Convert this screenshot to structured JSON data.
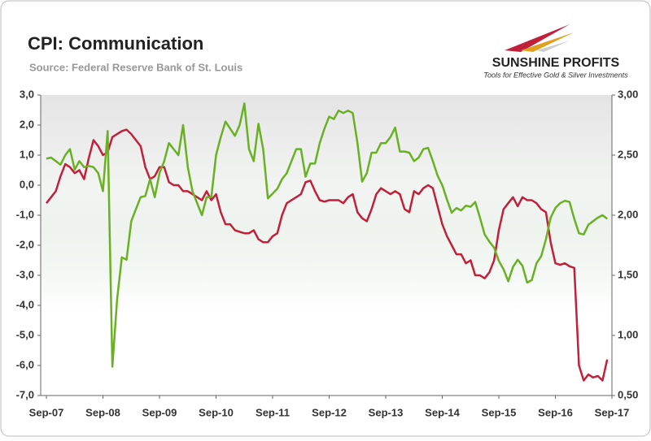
{
  "chart_data": {
    "type": "line",
    "title": "CPI: Communication",
    "subtitle": "Source: Federal Reserve Bank of St. Louis",
    "annotations": [
      "SUNSHINE PROFITS",
      "Tools for Effective Gold & Silver Investments"
    ],
    "categories": [
      "Sep-07",
      null,
      null,
      null,
      null,
      null,
      null,
      null,
      null,
      null,
      null,
      null,
      "Sep-08",
      null,
      null,
      null,
      null,
      null,
      null,
      null,
      null,
      null,
      null,
      null,
      "Sep-09",
      null,
      null,
      null,
      null,
      null,
      null,
      null,
      null,
      null,
      null,
      null,
      "Sep-10",
      null,
      null,
      null,
      null,
      null,
      null,
      null,
      null,
      null,
      null,
      null,
      "Sep-11",
      null,
      null,
      null,
      null,
      null,
      null,
      null,
      null,
      null,
      null,
      null,
      "Sep-12",
      null,
      null,
      null,
      null,
      null,
      null,
      null,
      null,
      null,
      null,
      null,
      "Sep-13",
      null,
      null,
      null,
      null,
      null,
      null,
      null,
      null,
      null,
      null,
      null,
      "Sep-14",
      null,
      null,
      null,
      null,
      null,
      null,
      null,
      null,
      null,
      null,
      null,
      "Sep-15",
      null,
      null,
      null,
      null,
      null,
      null,
      null,
      null,
      null,
      null,
      null,
      "Sep-16",
      null,
      null,
      null,
      null,
      null,
      null,
      null,
      null,
      null,
      null,
      null,
      "Sep-17"
    ],
    "series": [
      {
        "color": "#c0203a",
        "values": [
          -0.6,
          -0.4,
          -0.2,
          0.3,
          0.7,
          0.6,
          0.4,
          0.5,
          0.2,
          0.9,
          1.5,
          1.3,
          1.0,
          1.1,
          1.6,
          1.7,
          1.8,
          1.85,
          1.7,
          1.5,
          1.3,
          0.6,
          0.2,
          0.3,
          0.6,
          0.6,
          0.1,
          0.0,
          0.0,
          -0.2,
          -0.2,
          -0.3,
          -0.4,
          -0.5,
          -0.2,
          -0.5,
          -0.3,
          -0.9,
          -1.3,
          -1.3,
          -1.5,
          -1.55,
          -1.6,
          -1.6,
          -1.5,
          -1.8,
          -1.9,
          -1.9,
          -1.7,
          -1.6,
          -1.0,
          -0.6,
          -0.5,
          -0.4,
          -0.3,
          0.1,
          0.15,
          -0.2,
          -0.5,
          -0.55,
          -0.5,
          -0.5,
          -0.5,
          -0.6,
          -0.4,
          -0.3,
          -0.9,
          -1.1,
          -1.2,
          -0.8,
          -0.3,
          -0.1,
          -0.2,
          -0.3,
          -0.2,
          -0.3,
          -0.8,
          -0.9,
          -0.2,
          -0.3,
          -0.1,
          0.0,
          -0.1,
          -0.7,
          -1.3,
          -1.7,
          -2.0,
          -2.3,
          -2.3,
          -2.6,
          -2.5,
          -3.0,
          -3.0,
          -3.1,
          -2.9,
          -2.5,
          -1.5,
          -0.8,
          -0.6,
          -0.4,
          -0.7,
          -0.4,
          -0.5,
          -0.5,
          -0.6,
          -0.8,
          -0.9,
          -1.9,
          -2.6,
          -2.65,
          -2.6,
          -2.7,
          -2.75,
          -6.0,
          -6.5,
          -6.3,
          -6.4,
          -6.35,
          -6.5,
          -5.8,
          null
        ]
      },
      {
        "color": "#6ab023",
        "axis": "y2",
        "values": [
          2.47,
          2.48,
          2.45,
          2.42,
          2.5,
          2.55,
          2.38,
          2.45,
          2.4,
          2.41,
          2.4,
          2.35,
          2.2,
          2.7,
          0.74,
          1.3,
          1.65,
          1.63,
          1.95,
          2.05,
          2.15,
          2.16,
          2.3,
          2.15,
          2.35,
          2.45,
          2.6,
          2.55,
          2.5,
          2.75,
          2.4,
          2.2,
          2.1,
          2.0,
          2.15,
          2.15,
          2.5,
          2.65,
          2.78,
          2.72,
          2.66,
          2.75,
          2.93,
          2.55,
          2.45,
          2.76,
          2.55,
          2.14,
          2.18,
          2.22,
          2.3,
          2.35,
          2.45,
          2.55,
          2.55,
          2.32,
          2.43,
          2.43,
          2.6,
          2.72,
          2.82,
          2.8,
          2.87,
          2.85,
          2.87,
          2.85,
          2.6,
          2.28,
          2.35,
          2.52,
          2.52,
          2.6,
          2.6,
          2.65,
          2.73,
          2.53,
          2.53,
          2.52,
          2.45,
          2.48,
          2.55,
          2.56,
          2.45,
          2.33,
          2.25,
          2.13,
          2.02,
          2.06,
          2.04,
          2.08,
          2.07,
          2.11,
          1.98,
          1.84,
          1.78,
          1.73,
          1.62,
          1.55,
          1.45,
          1.57,
          1.63,
          1.58,
          1.44,
          1.46,
          1.6,
          1.66,
          1.8,
          1.98,
          2.06,
          2.1,
          2.12,
          2.11,
          1.97,
          1.85,
          1.84,
          1.92,
          1.95,
          1.98,
          2.0,
          1.97,
          null
        ]
      }
    ],
    "ylim": [
      -7,
      3
    ],
    "yticks": [
      {
        "value": 3,
        "label": "3,0"
      },
      {
        "value": 2,
        "label": "2,0"
      },
      {
        "value": 1,
        "label": "1,0"
      },
      {
        "value": 0,
        "label": "0,0"
      },
      {
        "value": -1,
        "label": "-1,0"
      },
      {
        "value": -2,
        "label": "-2,0"
      },
      {
        "value": -3,
        "label": "-3,0"
      },
      {
        "value": -4,
        "label": "-4,0"
      },
      {
        "value": -5,
        "label": "-5,0"
      },
      {
        "value": -6,
        "label": "-6,0"
      },
      {
        "value": -7,
        "label": "-7,0"
      }
    ],
    "y2lim": [
      0.5,
      3
    ],
    "y2ticks": [
      {
        "value": 3,
        "label": "3,00"
      },
      {
        "value": 2.5,
        "label": "2,50"
      },
      {
        "value": 2,
        "label": "2,00"
      },
      {
        "value": 1.5,
        "label": "1,50"
      },
      {
        "value": 1,
        "label": "1,00"
      },
      {
        "value": 0.5,
        "label": "0,50"
      }
    ],
    "grid": false
  }
}
